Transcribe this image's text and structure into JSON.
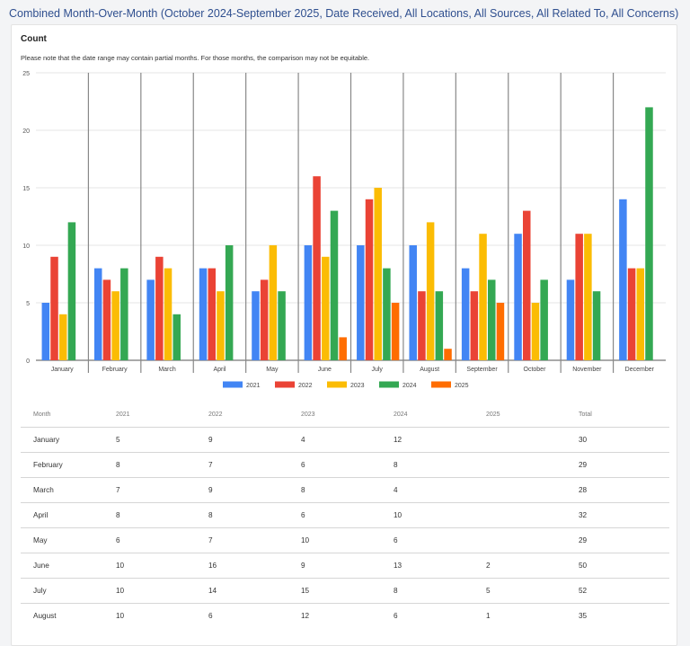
{
  "page": {
    "title": "Combined Month-Over-Month (October 2024-September 2025, Date Received, All Locations, All Sources, All Related To, All Concerns)",
    "card_title": "Count",
    "note": "Please note that the date range may contain partial months. For those months, the comparison may not be equitable."
  },
  "chart_data": {
    "type": "bar",
    "title": "",
    "xlabel": "",
    "ylabel": "",
    "ylim": [
      0,
      25
    ],
    "yticks": [
      0,
      5,
      10,
      15,
      20,
      25
    ],
    "grid": true,
    "legend": "bottom",
    "categories": [
      "January",
      "February",
      "March",
      "April",
      "May",
      "June",
      "July",
      "August",
      "September",
      "October",
      "November",
      "December"
    ],
    "series": [
      {
        "name": "2021",
        "color": "#4285f4",
        "values": [
          5,
          8,
          7,
          8,
          6,
          10,
          10,
          10,
          8,
          11,
          7,
          14
        ]
      },
      {
        "name": "2022",
        "color": "#ea4335",
        "values": [
          9,
          7,
          9,
          8,
          7,
          16,
          14,
          6,
          6,
          13,
          11,
          8
        ]
      },
      {
        "name": "2023",
        "color": "#fbbc04",
        "values": [
          4,
          6,
          8,
          6,
          10,
          9,
          15,
          12,
          11,
          5,
          11,
          8
        ]
      },
      {
        "name": "2024",
        "color": "#34a853",
        "values": [
          12,
          8,
          4,
          10,
          6,
          13,
          8,
          6,
          7,
          7,
          6,
          22
        ]
      },
      {
        "name": "2025",
        "color": "#ff6d01",
        "values": [
          null,
          null,
          null,
          null,
          null,
          2,
          5,
          1,
          5,
          null,
          null,
          null
        ]
      }
    ]
  },
  "table": {
    "headers": [
      "Month",
      "2021",
      "2022",
      "2023",
      "2024",
      "2025",
      "Total"
    ],
    "rows": [
      [
        "January",
        "5",
        "9",
        "4",
        "12",
        "",
        "30"
      ],
      [
        "February",
        "8",
        "7",
        "6",
        "8",
        "",
        "29"
      ],
      [
        "March",
        "7",
        "9",
        "8",
        "4",
        "",
        "28"
      ],
      [
        "April",
        "8",
        "8",
        "6",
        "10",
        "",
        "32"
      ],
      [
        "May",
        "6",
        "7",
        "10",
        "6",
        "",
        "29"
      ],
      [
        "June",
        "10",
        "16",
        "9",
        "13",
        "2",
        "50"
      ],
      [
        "July",
        "10",
        "14",
        "15",
        "8",
        "5",
        "52"
      ],
      [
        "August",
        "10",
        "6",
        "12",
        "6",
        "1",
        "35"
      ]
    ]
  }
}
